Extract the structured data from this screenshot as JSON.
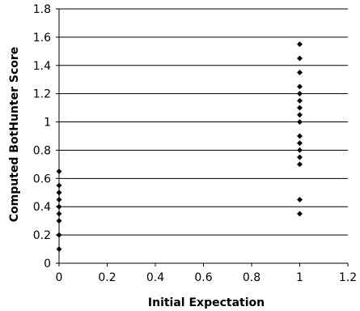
{
  "chart_data": {
    "type": "scatter",
    "title": "",
    "xlabel": "Initial Expectation",
    "ylabel": "Computed BotHunter Score",
    "xlim": [
      0,
      1.2
    ],
    "ylim": [
      0,
      1.8
    ],
    "x_ticks": [
      "0",
      "0.2",
      "0.4",
      "0.6",
      "0.8",
      "1",
      "1.2"
    ],
    "y_ticks": [
      "0",
      "0.2",
      "0.4",
      "0.6",
      "0.8",
      "1",
      "1.2",
      "1.4",
      "1.6",
      "1.8"
    ],
    "grid": "horizontal",
    "legend": "none",
    "marker_color": "#000000",
    "series": [
      {
        "points": [
          {
            "x": 0,
            "y": 0.1
          },
          {
            "x": 0,
            "y": 0.2
          },
          {
            "x": 0,
            "y": 0.3
          },
          {
            "x": 0,
            "y": 0.35
          },
          {
            "x": 0,
            "y": 0.4
          },
          {
            "x": 0,
            "y": 0.45
          },
          {
            "x": 0,
            "y": 0.5
          },
          {
            "x": 0,
            "y": 0.55
          },
          {
            "x": 0,
            "y": 0.65
          },
          {
            "x": 1,
            "y": 0.35
          },
          {
            "x": 1,
            "y": 0.45
          },
          {
            "x": 1,
            "y": 0.7
          },
          {
            "x": 1,
            "y": 0.75
          },
          {
            "x": 1,
            "y": 0.8
          },
          {
            "x": 1,
            "y": 0.85
          },
          {
            "x": 1,
            "y": 0.9
          },
          {
            "x": 1,
            "y": 1.0
          },
          {
            "x": 1,
            "y": 1.05
          },
          {
            "x": 1,
            "y": 1.1
          },
          {
            "x": 1,
            "y": 1.15
          },
          {
            "x": 1,
            "y": 1.2
          },
          {
            "x": 1,
            "y": 1.25
          },
          {
            "x": 1,
            "y": 1.35
          },
          {
            "x": 1,
            "y": 1.45
          },
          {
            "x": 1,
            "y": 1.55
          }
        ]
      }
    ]
  }
}
